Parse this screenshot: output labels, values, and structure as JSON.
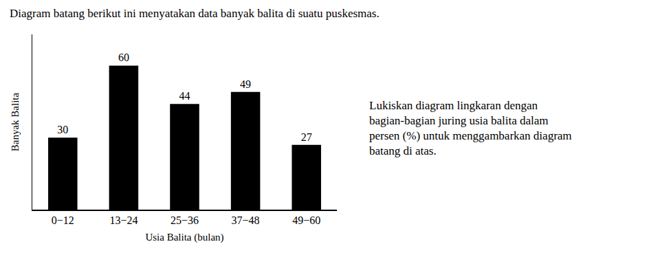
{
  "chart_data": {
    "type": "bar",
    "title": "Diagram batang berikut ini menyatakan data banyak balita di suatu puskesmas.",
    "x_label": "Usia Balita (bulan)",
    "y_label": "Banyak Balita",
    "categories": [
      "0−12",
      "13−24",
      "25−36",
      "37−48",
      "49−60"
    ],
    "values": [
      30,
      60,
      44,
      49,
      27
    ],
    "color": "#000000",
    "ylim": [
      0,
      73
    ],
    "yticks": [],
    "grid": false,
    "data_labels": true,
    "tick_labels": "x",
    "annotations": [
      "Lukiskan diagram lingkaran dengan bagian-bagian juring usia balita dalam persen (%) untuk menggambarkan diagram batang di atas."
    ]
  }
}
